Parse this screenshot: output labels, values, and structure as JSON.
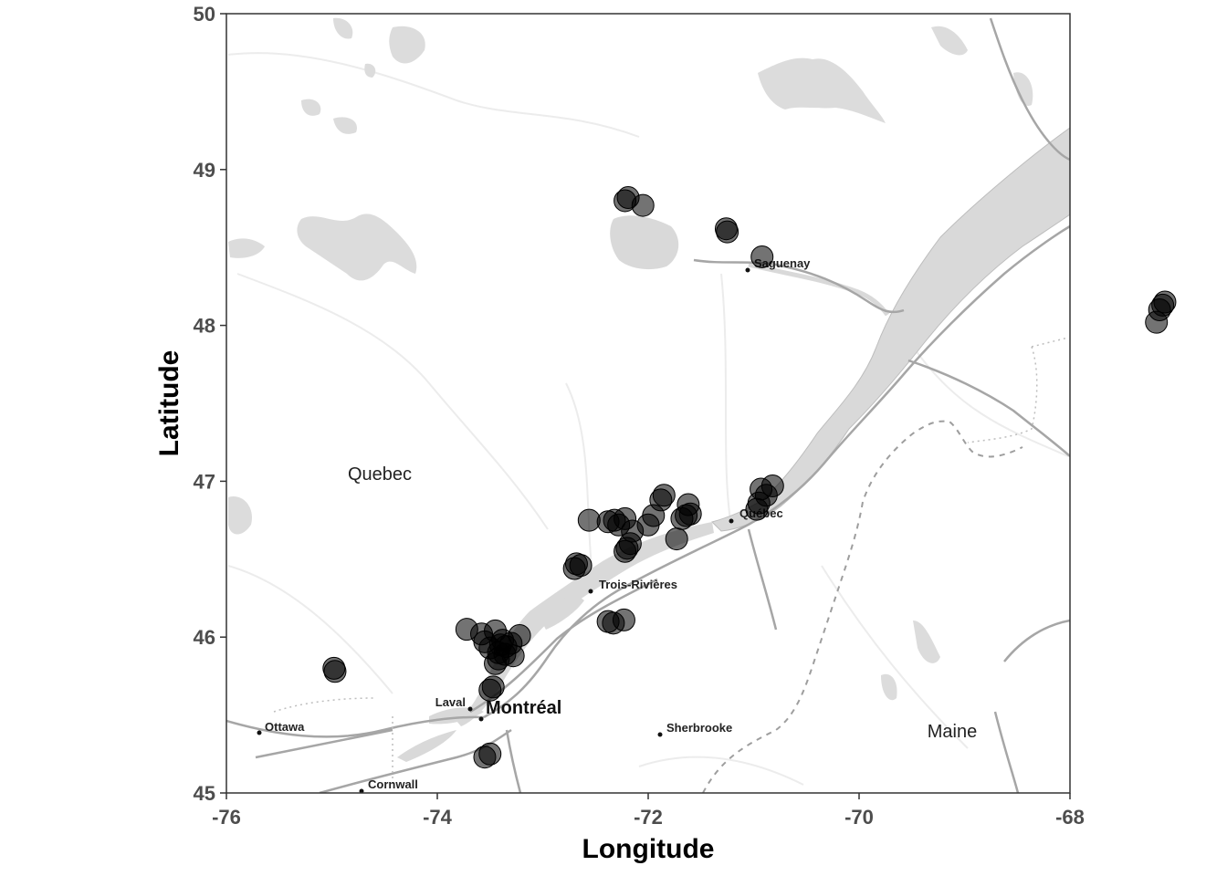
{
  "chart_data": {
    "type": "scatter",
    "xlabel": "Longitude",
    "ylabel": "Latitude",
    "xlim": [
      -76,
      -68
    ],
    "ylim": [
      45,
      50
    ],
    "x_ticks": [
      -76,
      -74,
      -72,
      -70,
      -68
    ],
    "y_ticks": [
      45,
      46,
      47,
      48,
      49,
      50
    ],
    "x_tick_labels": [
      "-76",
      "-74",
      "-72",
      "-70",
      "-68"
    ],
    "y_tick_labels": [
      "45",
      "46",
      "47",
      "48",
      "49",
      "50"
    ],
    "grid": false,
    "basemap": "grayscale terrain/road map",
    "point_color": "#000000",
    "point_opacity": 0.55,
    "points": [
      {
        "x": -72.22,
        "y": 48.8
      },
      {
        "x": -72.19,
        "y": 48.82
      },
      {
        "x": -72.05,
        "y": 48.77
      },
      {
        "x": -71.26,
        "y": 48.62
      },
      {
        "x": -71.25,
        "y": 48.6
      },
      {
        "x": -70.92,
        "y": 48.44
      },
      {
        "x": -67.18,
        "y": 48.02
      },
      {
        "x": -67.15,
        "y": 48.1
      },
      {
        "x": -67.12,
        "y": 48.13
      },
      {
        "x": -67.1,
        "y": 48.15
      },
      {
        "x": -70.97,
        "y": 46.82
      },
      {
        "x": -70.95,
        "y": 46.86
      },
      {
        "x": -70.93,
        "y": 46.95
      },
      {
        "x": -70.88,
        "y": 46.91
      },
      {
        "x": -70.82,
        "y": 46.97
      },
      {
        "x": -72.56,
        "y": 46.75
      },
      {
        "x": -72.38,
        "y": 46.74
      },
      {
        "x": -72.32,
        "y": 46.75
      },
      {
        "x": -72.28,
        "y": 46.72
      },
      {
        "x": -72.22,
        "y": 46.76
      },
      {
        "x": -72.15,
        "y": 46.68
      },
      {
        "x": -72.0,
        "y": 46.72
      },
      {
        "x": -71.95,
        "y": 46.78
      },
      {
        "x": -71.88,
        "y": 46.88
      },
      {
        "x": -71.85,
        "y": 46.91
      },
      {
        "x": -71.73,
        "y": 46.63
      },
      {
        "x": -71.68,
        "y": 46.76
      },
      {
        "x": -71.64,
        "y": 46.78
      },
      {
        "x": -71.62,
        "y": 46.85
      },
      {
        "x": -71.6,
        "y": 46.79
      },
      {
        "x": -72.22,
        "y": 46.55
      },
      {
        "x": -72.2,
        "y": 46.57
      },
      {
        "x": -72.17,
        "y": 46.6
      },
      {
        "x": -72.7,
        "y": 46.44
      },
      {
        "x": -72.68,
        "y": 46.47
      },
      {
        "x": -72.64,
        "y": 46.46
      },
      {
        "x": -72.38,
        "y": 46.1
      },
      {
        "x": -72.33,
        "y": 46.09
      },
      {
        "x": -72.23,
        "y": 46.11
      },
      {
        "x": -73.72,
        "y": 46.05
      },
      {
        "x": -73.58,
        "y": 46.02
      },
      {
        "x": -73.55,
        "y": 45.97
      },
      {
        "x": -73.5,
        "y": 45.93
      },
      {
        "x": -73.45,
        "y": 46.04
      },
      {
        "x": -73.42,
        "y": 45.9
      },
      {
        "x": -73.4,
        "y": 45.95
      },
      {
        "x": -73.38,
        "y": 45.98
      },
      {
        "x": -73.36,
        "y": 45.89
      },
      {
        "x": -73.35,
        "y": 45.94
      },
      {
        "x": -73.3,
        "y": 45.96
      },
      {
        "x": -73.28,
        "y": 45.88
      },
      {
        "x": -73.22,
        "y": 46.01
      },
      {
        "x": -73.45,
        "y": 45.83
      },
      {
        "x": -73.42,
        "y": 45.86
      },
      {
        "x": -73.5,
        "y": 45.66
      },
      {
        "x": -73.47,
        "y": 45.68
      },
      {
        "x": -74.98,
        "y": 45.8
      },
      {
        "x": -74.97,
        "y": 45.78
      },
      {
        "x": -73.55,
        "y": 45.23
      },
      {
        "x": -73.5,
        "y": 45.25
      }
    ]
  },
  "map_labels": {
    "regions": [
      "Quebec",
      "Maine"
    ],
    "cities": [
      "Saguenay",
      "Québec",
      "Trois-Rivières",
      "Laval",
      "Montréal",
      "Ottawa",
      "Sherbrooke",
      "Cornwall"
    ]
  }
}
